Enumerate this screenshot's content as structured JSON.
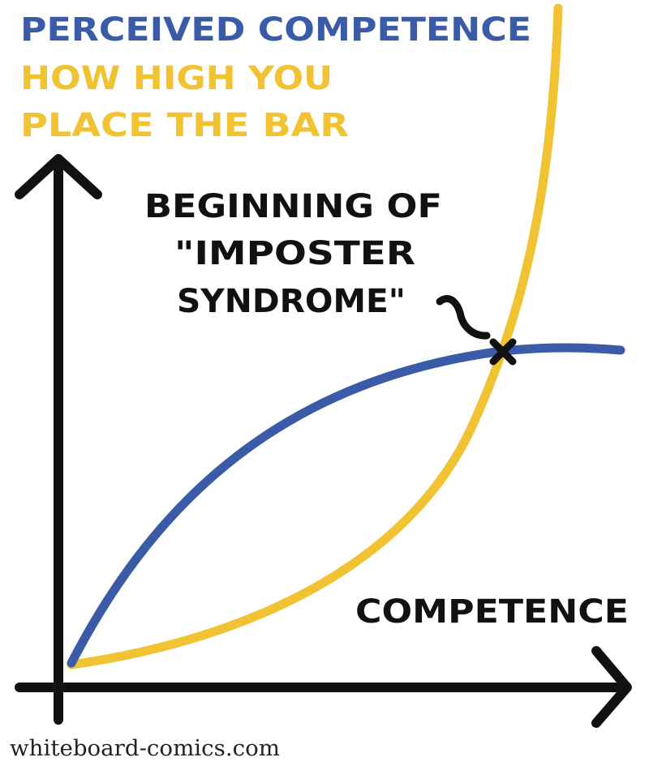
{
  "legend": {
    "blue_label": "PERCEIVED COMPETENCE",
    "yellow_label_lines": [
      "HOW HIGH YOU",
      "PLACE THE BAR"
    ]
  },
  "annotation": {
    "lines": [
      "BEGINNING OF",
      "\"IMPOSTER",
      "SYNDROME\""
    ]
  },
  "x_axis_label": "COMPETENCE",
  "footer": "whiteboard-comics.com"
}
